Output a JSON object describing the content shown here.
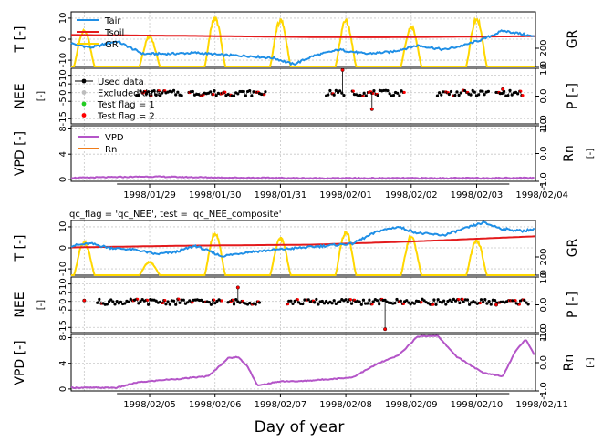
{
  "xlabel": "Day of year",
  "colors": {
    "tair": "#1f8fe6",
    "tsoil": "#e31a1c",
    "gr": "#ffd700",
    "vpd": "#b455c8",
    "rn": "#ef7c1a",
    "used": "#000000",
    "excluded": "#bdbdbd",
    "flag1": "#22cc22",
    "flag2": "#ff0000"
  },
  "chart_data": [
    {
      "type": "line",
      "title": "",
      "xlabel": "",
      "x_ticks": [
        "1998/01/29",
        "1998/01/30",
        "1998/01/31",
        "1998/02/01",
        "1998/02/02",
        "1998/02/03",
        "1998/02/04"
      ],
      "start_day": 28.3,
      "end_day": 35.4,
      "panels": [
        {
          "name": "temperature",
          "ylabel": "T [-]",
          "yticks": [
            -10,
            0,
            10
          ],
          "ylim": [
            -13,
            13
          ],
          "right_ylabel": "GR",
          "right_yticks": [
            0,
            200
          ],
          "right_ylim": [
            0,
            600
          ],
          "legend": [
            "Tair",
            "Tsoil",
            "GR"
          ]
        },
        {
          "name": "nee",
          "ylabel": "NEE",
          "ylabel2": "[-]",
          "yticks": [
            -15,
            -5,
            0,
            5,
            10
          ],
          "ylim": [
            -18,
            14
          ],
          "right_ylabel": "P [-]",
          "right_yticks": [
            -1.0,
            0.0,
            1.0
          ],
          "right_ylim": [
            -1.0,
            1.0
          ],
          "legend": [
            "Used data",
            "Excluded data",
            "Test flag = 1",
            "Test flag = 2"
          ]
        },
        {
          "name": "vpd",
          "ylabel": "VPD [-]",
          "yticks": [
            0,
            4,
            8
          ],
          "ylim": [
            -0.3,
            8.5
          ],
          "right_ylabel": "Rn",
          "right_ylabel2": "[-]",
          "right_yticks": [
            -1.0,
            0.0,
            1.0
          ],
          "right_ylim": [
            -1.0,
            1.0
          ],
          "legend": [
            "VPD",
            "Rn"
          ]
        }
      ],
      "series": [
        {
          "name": "Tair",
          "points": [
            [
              28.3,
              -2.0
            ],
            [
              28.6,
              -4.0
            ],
            [
              29.0,
              -1.0
            ],
            [
              29.4,
              -7.0
            ],
            [
              29.8,
              -7.0
            ],
            [
              30.2,
              -6.5
            ],
            [
              30.6,
              -7.5
            ],
            [
              31.0,
              -8.0
            ],
            [
              31.4,
              -9.0
            ],
            [
              31.7,
              -12.0
            ],
            [
              32.0,
              -8.0
            ],
            [
              32.4,
              -5.0
            ],
            [
              32.8,
              -7.0
            ],
            [
              33.2,
              -6.0
            ],
            [
              33.6,
              -3.0
            ],
            [
              34.0,
              -5.0
            ],
            [
              34.3,
              -3.0
            ],
            [
              34.6,
              0.0
            ],
            [
              34.9,
              4.0
            ],
            [
              35.1,
              3.0
            ],
            [
              35.4,
              1.0
            ]
          ]
        },
        {
          "name": "Tsoil",
          "points": [
            [
              28.3,
              2.0
            ],
            [
              30.0,
              1.6
            ],
            [
              32.0,
              1.0
            ],
            [
              33.0,
              0.9
            ],
            [
              35.4,
              1.4
            ]
          ]
        },
        {
          "name": "GR",
          "days": [
            28.5,
            29.5,
            30.5,
            31.5,
            32.5,
            33.5,
            34.5
          ],
          "peaks": [
            420,
            340,
            550,
            530,
            520,
            460,
            550
          ]
        },
        {
          "name": "NEE used",
          "segments": [
            [
              29.3,
              30.0
            ],
            [
              30.1,
              31.3
            ],
            [
              32.2,
              32.5
            ],
            [
              32.6,
              33.4
            ],
            [
              33.9,
              34.7
            ],
            [
              34.8,
              35.2
            ]
          ]
        },
        {
          "name": "NEE flag 2",
          "points": [
            [
              32.45,
              13.0
            ],
            [
              32.9,
              -9.5
            ],
            [
              34.9,
              2.0
            ]
          ]
        },
        {
          "name": "VPD",
          "points": [
            [
              28.3,
              0.25
            ],
            [
              29.5,
              0.45
            ],
            [
              30.5,
              0.3
            ],
            [
              32.0,
              0.2
            ],
            [
              34.0,
              0.2
            ],
            [
              35.4,
              0.25
            ]
          ]
        }
      ]
    },
    {
      "type": "line",
      "title": "qc_flag = 'qc_NEE', test = 'qc_NEE_composite'",
      "xlabel": "Day of year",
      "x_ticks": [
        "1998/02/05",
        "1998/02/06",
        "1998/02/07",
        "1998/02/08",
        "1998/02/09",
        "1998/02/10",
        "1998/02/11"
      ],
      "start_day": 35.3,
      "end_day": 42.4,
      "panels": [
        {
          "name": "temperature",
          "ylabel": "T [-]",
          "yticks": [
            -10,
            0,
            10
          ],
          "ylim": [
            -13,
            13
          ],
          "right_ylabel": "GR",
          "right_yticks": [
            0,
            200
          ],
          "right_ylim": [
            0,
            600
          ],
          "legend": []
        },
        {
          "name": "nee",
          "ylabel": "NEE",
          "ylabel2": "[-]",
          "yticks": [
            -15,
            -5,
            0,
            5,
            10
          ],
          "ylim": [
            -18,
            14
          ],
          "right_ylabel": "P [-]",
          "right_yticks": [
            -1.0,
            0.0,
            1.0
          ],
          "right_ylim": [
            -1.0,
            1.0
          ],
          "legend": []
        },
        {
          "name": "vpd",
          "ylabel": "VPD [-]",
          "yticks": [
            0,
            4,
            8
          ],
          "ylim": [
            -0.3,
            8.5
          ],
          "right_ylabel": "Rn",
          "right_ylabel2": "[-]",
          "right_yticks": [
            -1.0,
            0.0,
            1.0
          ],
          "right_ylim": [
            -1.0,
            1.0
          ],
          "legend": []
        }
      ],
      "series": [
        {
          "name": "Tair",
          "points": [
            [
              35.3,
              1.0
            ],
            [
              35.6,
              2.0
            ],
            [
              35.9,
              0.0
            ],
            [
              36.3,
              -1.0
            ],
            [
              36.6,
              -3.0
            ],
            [
              36.9,
              -2.0
            ],
            [
              37.2,
              1.0
            ],
            [
              37.6,
              -4.0
            ],
            [
              38.0,
              -2.0
            ],
            [
              38.4,
              -1.0
            ],
            [
              38.8,
              0.0
            ],
            [
              39.2,
              1.0
            ],
            [
              39.6,
              2.0
            ],
            [
              40.0,
              8.0
            ],
            [
              40.3,
              10.0
            ],
            [
              40.6,
              7.0
            ],
            [
              41.0,
              6.0
            ],
            [
              41.3,
              9.0
            ],
            [
              41.6,
              12.0
            ],
            [
              41.9,
              9.0
            ],
            [
              42.2,
              8.0
            ],
            [
              42.4,
              9.0
            ]
          ]
        },
        {
          "name": "Tsoil",
          "points": [
            [
              35.3,
              0.2
            ],
            [
              37.0,
              1.0
            ],
            [
              39.0,
              1.5
            ],
            [
              40.5,
              3.0
            ],
            [
              42.4,
              5.5
            ]
          ]
        },
        {
          "name": "GR",
          "days": [
            35.5,
            36.5,
            37.5,
            38.5,
            39.5,
            40.5,
            41.5
          ],
          "peaks": [
            380,
            150,
            480,
            420,
            500,
            440,
            400
          ]
        },
        {
          "name": "NEE used",
          "segments": [
            [
              35.7,
              37.6
            ],
            [
              37.7,
              38.2
            ],
            [
              38.6,
              42.3
            ]
          ]
        },
        {
          "name": "NEE flag 2",
          "points": [
            [
              35.5,
              0.5
            ],
            [
              37.85,
              8.0
            ],
            [
              40.1,
              -16.0
            ],
            [
              41.8,
              -2.0
            ]
          ]
        },
        {
          "name": "VPD",
          "points": [
            [
              35.3,
              0.2
            ],
            [
              36.0,
              0.2
            ],
            [
              36.3,
              1.0
            ],
            [
              36.7,
              1.4
            ],
            [
              37.0,
              1.6
            ],
            [
              37.4,
              2.0
            ],
            [
              37.7,
              4.8
            ],
            [
              37.85,
              5.0
            ],
            [
              38.0,
              3.5
            ],
            [
              38.15,
              0.5
            ],
            [
              38.5,
              1.2
            ],
            [
              38.8,
              1.2
            ],
            [
              39.2,
              1.5
            ],
            [
              39.6,
              1.8
            ],
            [
              40.0,
              4.0
            ],
            [
              40.3,
              5.2
            ],
            [
              40.6,
              8.2
            ],
            [
              40.9,
              8.3
            ],
            [
              41.2,
              5.0
            ],
            [
              41.6,
              2.5
            ],
            [
              41.9,
              2.0
            ],
            [
              42.1,
              6.0
            ],
            [
              42.25,
              7.8
            ],
            [
              42.4,
              5.0
            ]
          ]
        }
      ]
    }
  ]
}
